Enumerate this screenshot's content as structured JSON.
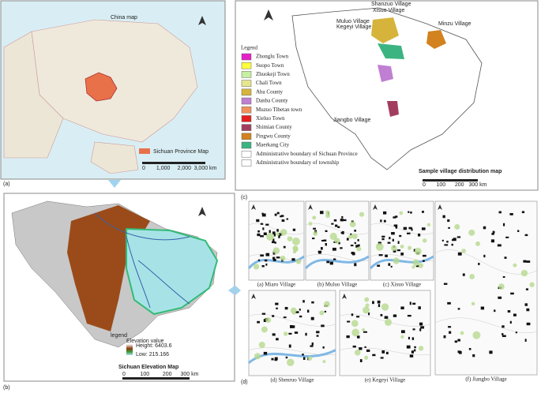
{
  "panel_a": {
    "label": "(a)",
    "title": "China map",
    "inset_label": "Sichuan Province Map",
    "scale": [
      "0",
      "1,000",
      "2,000",
      "3,000 km"
    ]
  },
  "panel_b": {
    "label": "(b)",
    "title": "Sichuan Elevation Map",
    "legend_title": "legend",
    "elevation_label": "Elevation value",
    "high": "Height: 6403.6",
    "low": "Low: 215.166",
    "scale": [
      "0",
      "100",
      "200",
      "300 km"
    ]
  },
  "panel_c": {
    "label": "(c)",
    "title": "Sample village distribution map",
    "legend_title": "Legend",
    "legend": [
      {
        "name": "Zhonglu Town",
        "color": "#e51fc8"
      },
      {
        "name": "Suopo Town",
        "color": "#ffff3c"
      },
      {
        "name": "Zhuokeji Town",
        "color": "#c6efa0"
      },
      {
        "name": "Chali Town",
        "color": "#e6e68c"
      },
      {
        "name": "Aba County",
        "color": "#d6b43c"
      },
      {
        "name": "Danba County",
        "color": "#c07fd2"
      },
      {
        "name": "Muzuo Tibetan town",
        "color": "#f2905a"
      },
      {
        "name": "Xieluo Town",
        "color": "#e41e1e"
      },
      {
        "name": "Shimian County",
        "color": "#a33d5f"
      },
      {
        "name": "Pingwu County",
        "color": "#d2821e"
      },
      {
        "name": "Maerkang City",
        "color": "#3cb482"
      },
      {
        "name": "Administrative boundary of Sichuan Province",
        "color": "#ffffff"
      },
      {
        "name": "Administrative boundary of  township",
        "color": "#ffffff"
      }
    ],
    "village_labels": [
      "Shanzuo Village",
      "Xisuo Village",
      "Muluo Village",
      "Kegeyi Village",
      "Minzu Village",
      "Jiangbo Village"
    ],
    "scale": [
      "0",
      "100",
      "200",
      "300 km"
    ]
  },
  "panel_d": {
    "label": "(d)",
    "villages": [
      "(a) Miaro Village",
      "(b) Muluo Village",
      "(c) Xisuo Village",
      "(d) Shenruo Village",
      "(e) Kegeyi Village",
      "(f) Jiangbo Village"
    ]
  }
}
